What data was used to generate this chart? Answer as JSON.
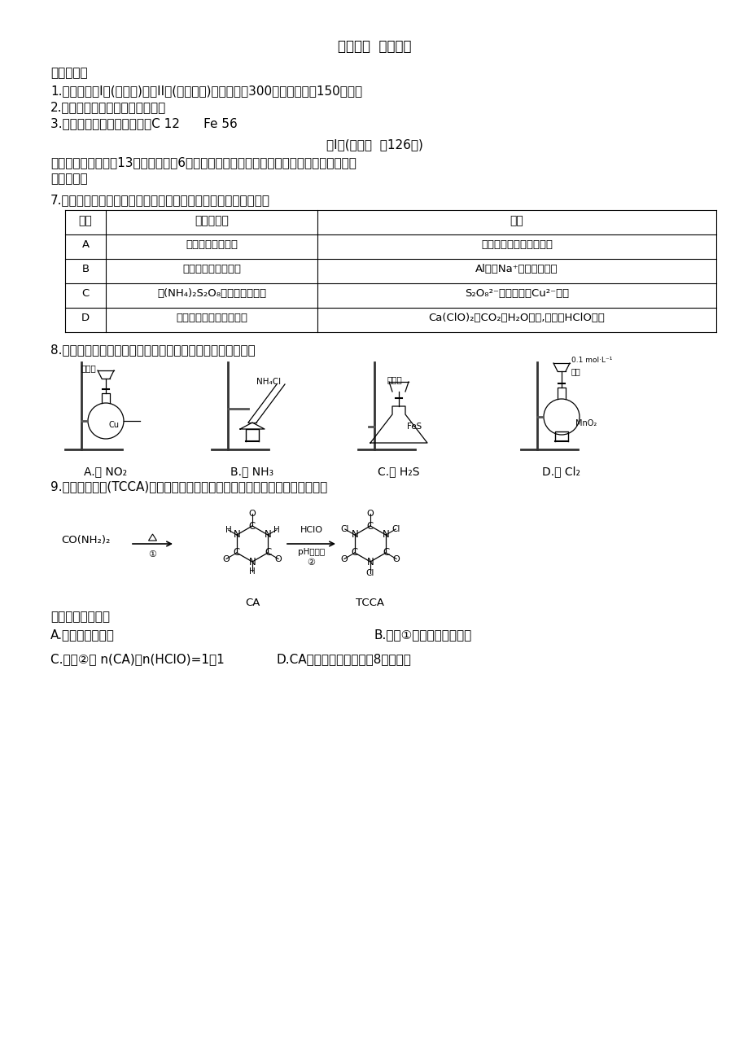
{
  "bg_color": "#ffffff",
  "title": "理科综合  化学部分",
  "notice_header": "考生注意：",
  "notice_items": [
    "1.本试卷分第I卷(选择题)和第II卷(非选择题)两部分，共300分。考试时间150分钟。",
    "2.请将各题答案填写在答题卡上。",
    "3.可能用到的相对原子质量：C 12      Fe 56"
  ],
  "section_title": "第I卷(选择题  共126分)",
  "section_desc": "一、选择题：本题共13小题，每小题6分。在每小题给出的四个选项中，只有一项是符合题",
  "section_desc2": "目要求的。",
  "q7_text": "7.化学与社会、生活密切相关。对下列现象或事实的解释错误的是",
  "table_headers": [
    "选项",
    "现象或事实",
    "解释"
  ],
  "table_rows": [
    [
      "A",
      "用铁罐贮存浓硝酸",
      "常温下铁在浓硝酸中钝化"
    ],
    [
      "B",
      "食盐能腐蚀铝制容器",
      "Al能与Na⁺发生置换反应"
    ],
    [
      "C",
      "用(NH₄)₂S₂O₈蚀刻铜制线路板",
      "S₂O₈²⁻的氧化性比Cu²⁻的强"
    ],
    [
      "D",
      "漂白粉在空气中久置变质",
      "Ca(ClO)₂与CO₂和H₂O反应,生成的HClO分解"
    ]
  ],
  "q8_text": "8.用图示装置及药品制备有关气体，其中能达到实验目的的是",
  "q8_labels": [
    "A.制 NO₂",
    "B.制 NH₃",
    "C.制 H₂S",
    "D.制 Cl₂"
  ],
  "q9_text": "9.三氯异氰尿酸(TCCA)是一种极强的氧化剂和氯化剂，可通过下列方法制备：",
  "q9_below": "下列说法正确的是",
  "q9_opt_A": "A.尿素属于无机物",
  "q9_opt_B": "B.反应①为非氧化还原反应",
  "q9_opt_C": "C.反应②中 n(CA)：n(HClO)=1：1",
  "q9_opt_D": "D.CA分子中各原子均满足8电子结构"
}
